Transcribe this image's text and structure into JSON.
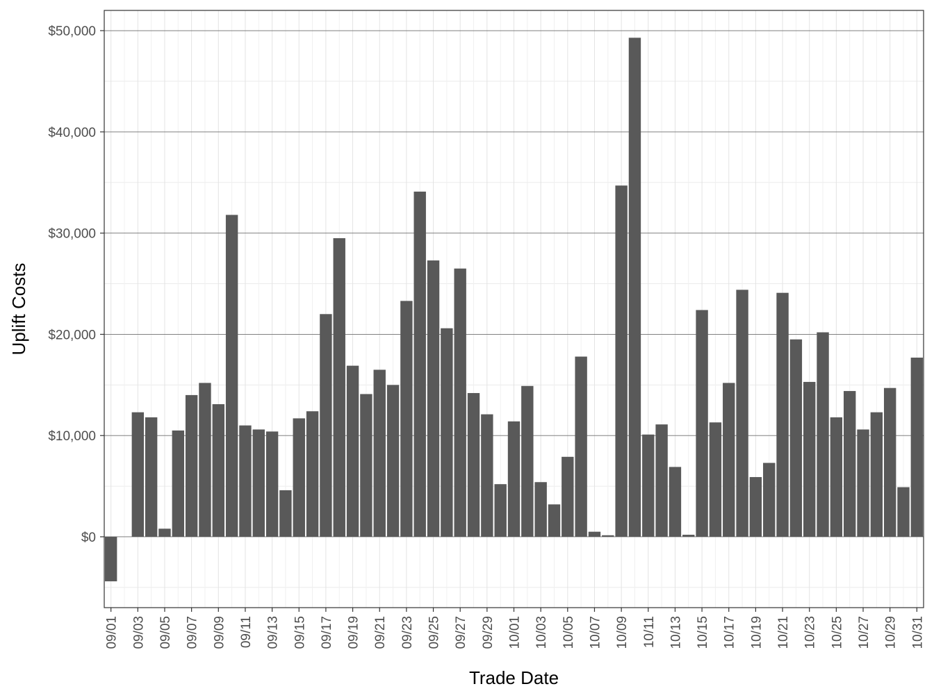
{
  "chart_data": {
    "type": "bar",
    "xlabel": "Trade Date",
    "ylabel": "Uplift Costs",
    "ylim": [
      -7000,
      52000
    ],
    "yticks": [
      0,
      10000,
      20000,
      30000,
      40000,
      50000
    ],
    "ytick_labels": [
      "$0",
      "$10,000",
      "$20,000",
      "$30,000",
      "$40,000",
      "$50,000"
    ],
    "grid": true,
    "bar_color": "#595959",
    "categories": [
      "09/01",
      "09/02",
      "09/03",
      "09/04",
      "09/05",
      "09/06",
      "09/07",
      "09/08",
      "09/09",
      "09/10",
      "09/11",
      "09/12",
      "09/13",
      "09/14",
      "09/15",
      "09/16",
      "09/17",
      "09/18",
      "09/19",
      "09/20",
      "09/21",
      "09/22",
      "09/23",
      "09/24",
      "09/25",
      "09/26",
      "09/27",
      "09/28",
      "09/29",
      "09/30",
      "10/01",
      "10/02",
      "10/03",
      "10/04",
      "10/05",
      "10/06",
      "10/07",
      "10/08",
      "10/09",
      "10/10",
      "10/11",
      "10/12",
      "10/13",
      "10/14",
      "10/15",
      "10/16",
      "10/17",
      "10/18",
      "10/19",
      "10/20",
      "10/21",
      "10/22",
      "10/23",
      "10/24",
      "10/25",
      "10/26",
      "10/27",
      "10/28",
      "10/29",
      "10/30",
      "10/31"
    ],
    "tick_labels": [
      "09/01",
      "09/03",
      "09/05",
      "09/07",
      "09/09",
      "09/11",
      "09/13",
      "09/15",
      "09/17",
      "09/19",
      "09/21",
      "09/23",
      "09/25",
      "09/27",
      "09/29",
      "10/01",
      "10/03",
      "10/05",
      "10/07",
      "10/09",
      "10/11",
      "10/13",
      "10/15",
      "10/17",
      "10/19",
      "10/21",
      "10/23",
      "10/25",
      "10/27",
      "10/29",
      "10/31"
    ],
    "values": [
      -4400,
      0,
      12300,
      11800,
      800,
      10500,
      14000,
      15200,
      13100,
      31800,
      11000,
      10600,
      10400,
      4600,
      11700,
      12400,
      22000,
      29500,
      16900,
      14100,
      16500,
      15000,
      23300,
      34100,
      27300,
      20600,
      26500,
      14200,
      12100,
      5200,
      11400,
      14900,
      5400,
      3200,
      7900,
      17800,
      500,
      150,
      34700,
      49300,
      10100,
      11100,
      6900,
      200,
      22400,
      11300,
      15200,
      24400,
      5900,
      7300,
      24100,
      19500,
      15300,
      20200,
      11800,
      14400,
      10600,
      12300,
      14700,
      4900,
      17700
    ]
  }
}
